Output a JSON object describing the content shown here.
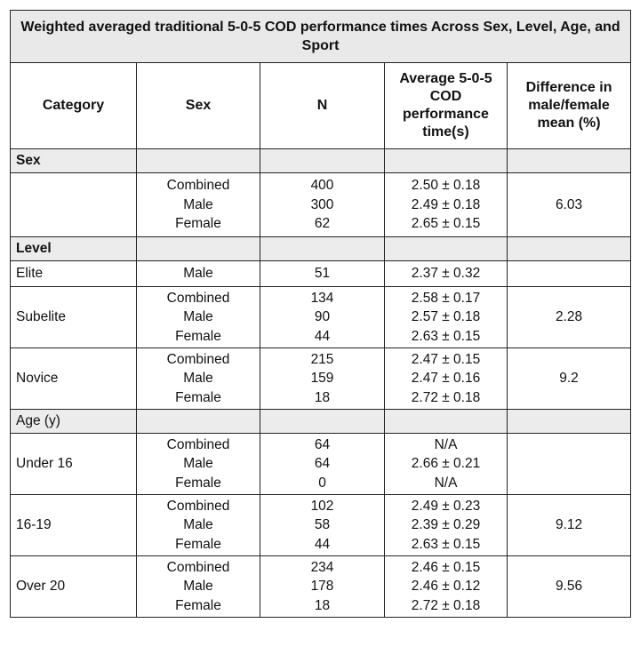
{
  "table": {
    "title": "Weighted averaged traditional 5-0-5 COD performance times Across Sex, Level, Age, and Sport",
    "headers": {
      "category": "Category",
      "sex": "Sex",
      "n": "N",
      "avg": "Average 5-0-5 COD performance time(s)",
      "diff": "Difference in male/female mean (%)"
    },
    "sections": [
      {
        "label": "Sex",
        "rows": [
          {
            "category": "",
            "sex": [
              "Combined",
              "Male",
              "Female"
            ],
            "n": [
              "400",
              "300",
              "62"
            ],
            "avg": [
              "2.50 ± 0.18",
              "2.49 ± 0.18",
              "2.65 ± 0.15"
            ],
            "diff": "6.03"
          }
        ]
      },
      {
        "label": "Level",
        "rows": [
          {
            "category": "Elite",
            "sex": [
              "Male"
            ],
            "n": [
              "51"
            ],
            "avg": [
              "2.37 ± 0.32"
            ],
            "diff": ""
          },
          {
            "category": "Subelite",
            "sex": [
              "Combined",
              "Male",
              "Female"
            ],
            "n": [
              "134",
              "90",
              "44"
            ],
            "avg": [
              "2.58 ± 0.17",
              "2.57 ± 0.18",
              "2.63 ± 0.15"
            ],
            "diff": "2.28"
          },
          {
            "category": "Novice",
            "sex": [
              "Combined",
              "Male",
              "Female"
            ],
            "n": [
              "215",
              "159",
              "18"
            ],
            "avg": [
              "2.47 ± 0.15",
              "2.47 ± 0.16",
              "2.72 ± 0.18"
            ],
            "diff": "9.2"
          }
        ]
      },
      {
        "label": "Age (y)",
        "rows": [
          {
            "category": "Under 16",
            "sex": [
              "Combined",
              "Male",
              "Female"
            ],
            "n": [
              "64",
              "64",
              "0"
            ],
            "avg": [
              "N/A",
              "2.66 ± 0.21",
              "N/A"
            ],
            "diff": ""
          },
          {
            "category": "16-19",
            "sex": [
              "Combined",
              "Male",
              "Female"
            ],
            "n": [
              "102",
              "58",
              "44"
            ],
            "avg": [
              "2.49 ± 0.23",
              "2.39 ± 0.29",
              "2.63 ± 0.15"
            ],
            "diff": "9.12"
          },
          {
            "category": "Over 20",
            "sex": [
              "Combined",
              "Male",
              "Female"
            ],
            "n": [
              "234",
              "178",
              "18"
            ],
            "avg": [
              "2.46 ± 0.15",
              "2.46 ± 0.12",
              "2.72 ± 0.18"
            ],
            "diff": "9.56"
          }
        ]
      }
    ]
  }
}
